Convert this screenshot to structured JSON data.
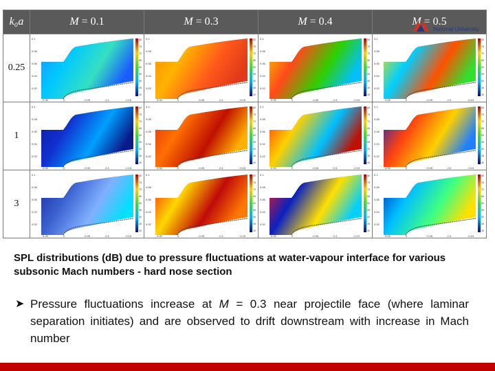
{
  "logo": {
    "text": "National University",
    "colors": [
      "#c0392b",
      "#233a7a"
    ]
  },
  "table": {
    "corner_label": "k₀a",
    "mach_label": "M",
    "columns": [
      "= 0.1",
      "= 0.3",
      "= 0.4",
      "= 0.5"
    ],
    "rows": [
      "0.25",
      "1",
      "3"
    ],
    "plot_axis": {
      "x_ticks": [
        "0.05",
        "0",
        "-0.05",
        "-0.1",
        "-0.15"
      ],
      "y_ticks": [
        "0.1",
        "0.08",
        "0.06",
        "0.04",
        "0.02"
      ]
    },
    "colorbar_ticks": [
      "80",
      "75",
      "70",
      "65",
      "60",
      "55",
      "50",
      "45",
      "40"
    ]
  },
  "caption": "SPL distributions (dB) due to pressure fluctuations at water-vapour interface for various subsonic Mach numbers - hard nose section",
  "bullet": {
    "icon": "arrow-bullet-icon",
    "before": "Pressure fluctuations increase at ",
    "symbol": "M",
    "after": " = 0.3 near projectile face (where laminar separation initiates) and are observed to drift downstream with increase in Mach number"
  },
  "colors": {
    "header_bg": "#5a5a5a",
    "accent_bar": "#c00000"
  }
}
